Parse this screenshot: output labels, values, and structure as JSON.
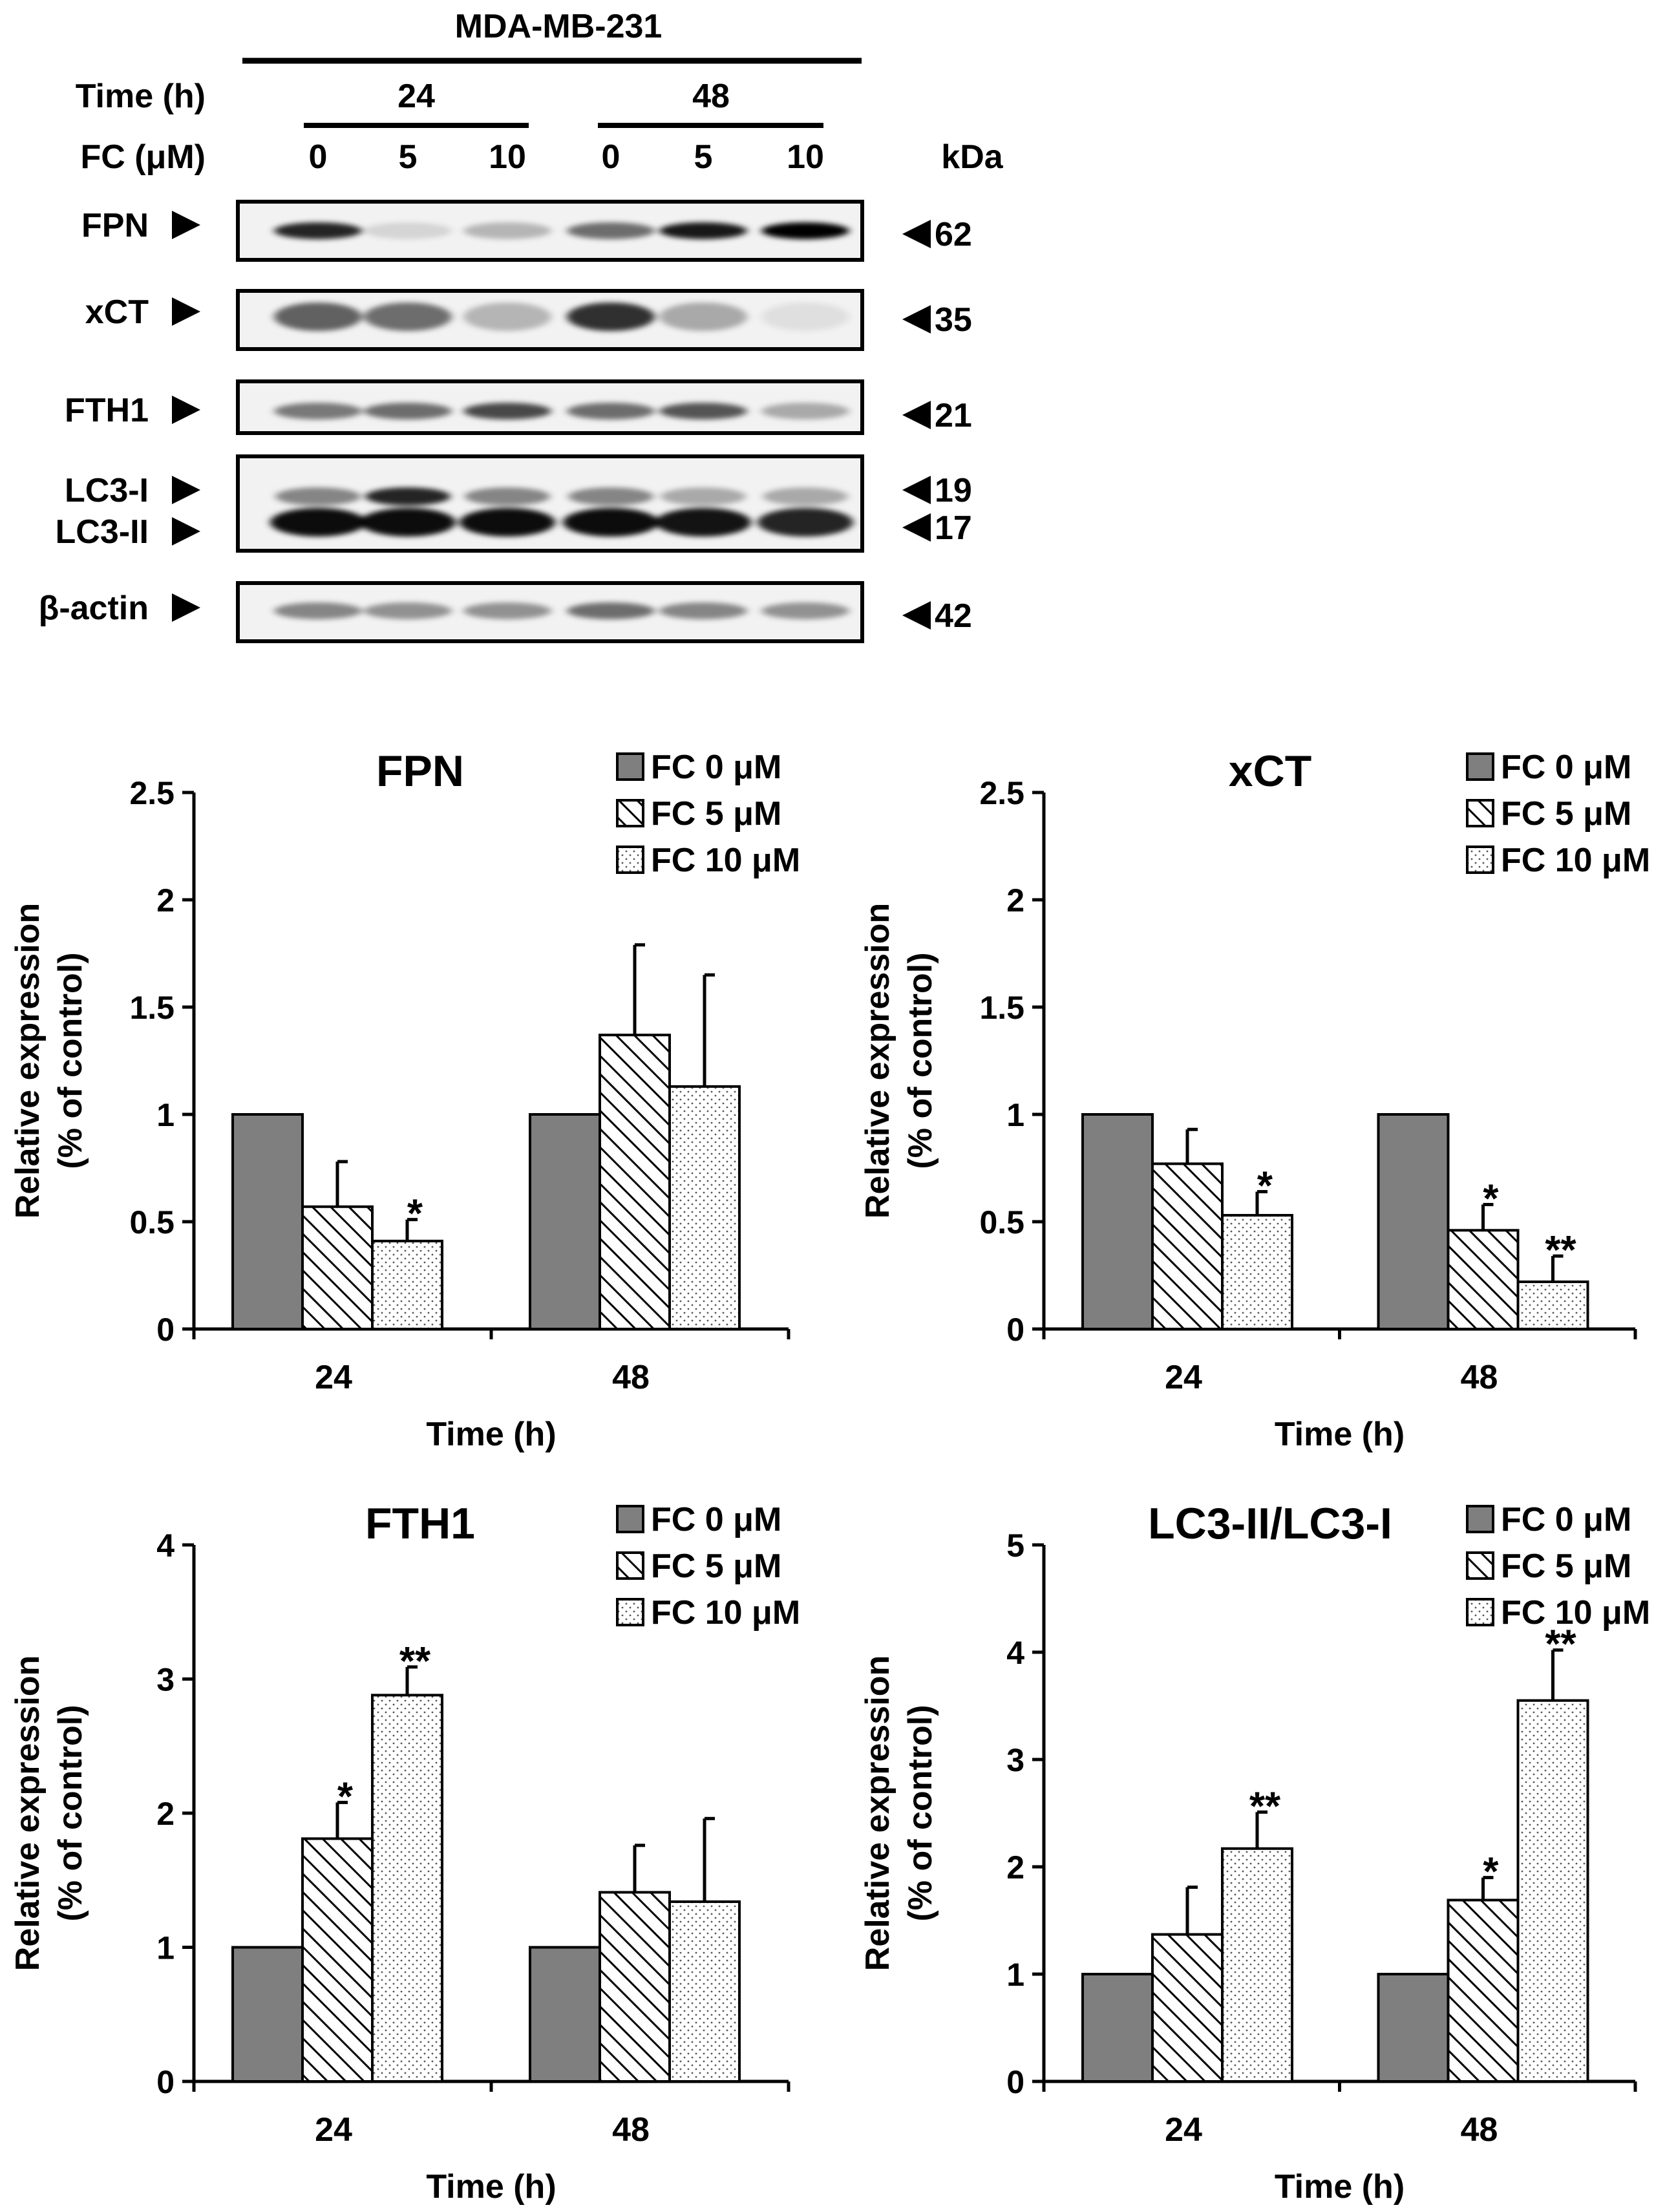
{
  "blot": {
    "cell_line": "MDA-MB-231",
    "time_label": "Time (h)",
    "times": [
      "24",
      "48"
    ],
    "fc_label": "FC (μM)",
    "concentrations": [
      "0",
      "5",
      "10",
      "0",
      "5",
      "10"
    ],
    "kda_label": "kDa",
    "rows": [
      {
        "labels": [
          "FPN"
        ],
        "kda": [
          "62"
        ],
        "intensity": [
          0.85,
          0.12,
          0.25,
          0.55,
          0.9,
          1.0
        ]
      },
      {
        "labels": [
          "xCT"
        ],
        "kda": [
          "35"
        ],
        "intensity": [
          0.6,
          0.55,
          0.25,
          0.8,
          0.3,
          0.08
        ]
      },
      {
        "labels": [
          "FTH1"
        ],
        "kda": [
          "21"
        ],
        "intensity": [
          0.5,
          0.55,
          0.7,
          0.55,
          0.65,
          0.3
        ]
      },
      {
        "labels": [
          "LC3-I",
          "LC3-II"
        ],
        "kda": [
          "19",
          "17"
        ],
        "intensity": [
          0.95,
          0.95,
          0.95,
          0.95,
          0.92,
          0.85
        ]
      },
      {
        "labels": [
          "β-actin"
        ],
        "kda": [
          "42"
        ],
        "intensity": [
          0.45,
          0.4,
          0.4,
          0.55,
          0.45,
          0.4
        ]
      }
    ]
  },
  "legend": [
    "FC 0 μM",
    "FC 5 μM",
    "FC 10 μM"
  ],
  "chart_data": [
    {
      "type": "bar",
      "title": "FPN",
      "categories": [
        "24",
        "48"
      ],
      "xlabel": "Time (h)",
      "ylabel": [
        "Relative expression",
        "(% of control)"
      ],
      "ylim": [
        0,
        2.5
      ],
      "yticks": [
        "0",
        "0.5",
        "1",
        "1.5",
        "2",
        "2.5"
      ],
      "series": [
        {
          "name": "FC 0 μM",
          "values": [
            1,
            1
          ],
          "errors": [
            0,
            0
          ],
          "sig": [
            "",
            ""
          ]
        },
        {
          "name": "FC 5 μM",
          "values": [
            0.57,
            1.37
          ],
          "errors": [
            0.21,
            0.42
          ],
          "sig": [
            "",
            ""
          ]
        },
        {
          "name": "FC 10 μM",
          "values": [
            0.41,
            1.13
          ],
          "errors": [
            0.1,
            0.52
          ],
          "sig": [
            "*",
            ""
          ]
        }
      ]
    },
    {
      "type": "bar",
      "title": "xCT",
      "categories": [
        "24",
        "48"
      ],
      "xlabel": "Time (h)",
      "ylabel": [
        "Relative expression",
        "(% of control)"
      ],
      "ylim": [
        0,
        2.5
      ],
      "yticks": [
        "0",
        "0.5",
        "1",
        "1.5",
        "2",
        "2.5"
      ],
      "series": [
        {
          "name": "FC 0 μM",
          "values": [
            1,
            1
          ],
          "errors": [
            0,
            0
          ],
          "sig": [
            "",
            ""
          ]
        },
        {
          "name": "FC 5 μM",
          "values": [
            0.77,
            0.46
          ],
          "errors": [
            0.16,
            0.12
          ],
          "sig": [
            "",
            "*"
          ]
        },
        {
          "name": "FC 10 μM",
          "values": [
            0.53,
            0.22
          ],
          "errors": [
            0.11,
            0.12
          ],
          "sig": [
            "*",
            "**"
          ]
        }
      ]
    },
    {
      "type": "bar",
      "title": "FTH1",
      "categories": [
        "24",
        "48"
      ],
      "xlabel": "Time (h)",
      "ylabel": [
        "Relative expression",
        "(% of control)"
      ],
      "ylim": [
        0,
        4
      ],
      "yticks": [
        "0",
        "1",
        "2",
        "3",
        "4"
      ],
      "series": [
        {
          "name": "FC 0 μM",
          "values": [
            1,
            1
          ],
          "errors": [
            0,
            0
          ],
          "sig": [
            "",
            ""
          ]
        },
        {
          "name": "FC 5 μM",
          "values": [
            1.81,
            1.41
          ],
          "errors": [
            0.27,
            0.35
          ],
          "sig": [
            "*",
            ""
          ]
        },
        {
          "name": "FC 10 μM",
          "values": [
            2.88,
            1.34
          ],
          "errors": [
            0.21,
            0.62
          ],
          "sig": [
            "**",
            ""
          ]
        }
      ]
    },
    {
      "type": "bar",
      "title": "LC3-II/LC3-I",
      "categories": [
        "24",
        "48"
      ],
      "xlabel": "Time (h)",
      "ylabel": [
        "Relative expression",
        "(% of control)"
      ],
      "ylim": [
        0,
        5
      ],
      "yticks": [
        "0",
        "1",
        "2",
        "3",
        "4",
        "5"
      ],
      "series": [
        {
          "name": "FC 0 μM",
          "values": [
            1,
            1
          ],
          "errors": [
            0,
            0
          ],
          "sig": [
            "",
            ""
          ]
        },
        {
          "name": "FC 5 μM",
          "values": [
            1.37,
            1.69
          ],
          "errors": [
            0.44,
            0.21
          ],
          "sig": [
            "",
            "*"
          ]
        },
        {
          "name": "FC 10 μM",
          "values": [
            2.17,
            3.55
          ],
          "errors": [
            0.34,
            0.47
          ],
          "sig": [
            "**",
            "**"
          ]
        }
      ]
    }
  ]
}
